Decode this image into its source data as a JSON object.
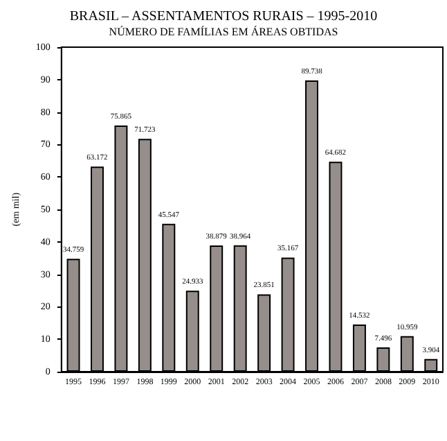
{
  "chart_data": {
    "type": "bar",
    "title": "BRASIL – ASSENTAMENTOS RURAIS – 1995-2010",
    "subtitle": "NÚMERO DE FAMÍLIAS EM ÁREAS OBTIDAS",
    "ylabel": "(em mil)",
    "categories": [
      "1995",
      "1996",
      "1997",
      "1998",
      "1999",
      "2000",
      "2001",
      "2002",
      "2003",
      "2004",
      "2005",
      "2006",
      "2007",
      "2008",
      "2009",
      "2010"
    ],
    "values": [
      34.759,
      63.172,
      75.865,
      71.723,
      45.547,
      24.933,
      38.879,
      38.964,
      23.851,
      35.167,
      89.738,
      64.682,
      14.532,
      7.496,
      10.959,
      3.904
    ],
    "color": "#958e8a",
    "ylim": [
      0,
      100
    ],
    "yticks": [
      0,
      10,
      20,
      30,
      40,
      50,
      60,
      70,
      80,
      90,
      100
    ],
    "grid": false,
    "data_labels": true
  }
}
